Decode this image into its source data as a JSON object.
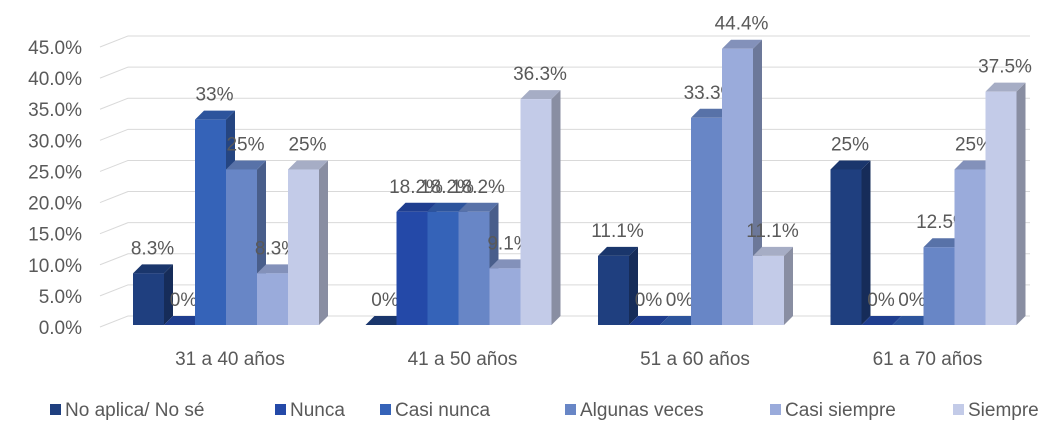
{
  "chart_data": {
    "type": "bar3d",
    "categories": [
      "31 a 40 años",
      "41 a 50 años",
      "51 a 60 años",
      "61 a 70 años"
    ],
    "series": [
      {
        "name": "No aplica/ No sé",
        "color": "#1f3f7f",
        "values": [
          8.3,
          0,
          11.1,
          25
        ],
        "value_labels": [
          "8.3%",
          "0%",
          "11.1%",
          "25%"
        ]
      },
      {
        "name": "Nunca",
        "color": "#2449a8",
        "values": [
          0,
          18.2,
          0,
          0
        ],
        "value_labels": [
          "0%",
          "18.2%",
          "0%",
          "0%"
        ]
      },
      {
        "name": "Casi nunca",
        "color": "#3563b8",
        "values": [
          33,
          18.2,
          0,
          0
        ],
        "value_labels": [
          "33%",
          "18.2%",
          "0%",
          "0%"
        ]
      },
      {
        "name": "Algunas veces",
        "color": "#6886c6",
        "values": [
          25,
          18.2,
          33.3,
          12.5
        ],
        "value_labels": [
          "25%",
          "18.2%",
          "33.3%",
          "12.5%"
        ]
      },
      {
        "name": "Casi siempre",
        "color": "#9aabdb",
        "values": [
          8.3,
          9.1,
          44.4,
          25
        ],
        "value_labels": [
          "8.3%",
          "9.1%",
          "44.4%",
          "25%"
        ]
      },
      {
        "name": "Siempre",
        "color": "#c3cbe8",
        "values": [
          25,
          36.3,
          11.1,
          37.5
        ],
        "value_labels": [
          "25%",
          "36.3%",
          "11.1%",
          "37.5%"
        ]
      }
    ],
    "ylim": [
      0,
      45
    ],
    "yticks": [
      {
        "value": 0,
        "label": "0.0%"
      },
      {
        "value": 5,
        "label": "5.0%"
      },
      {
        "value": 10,
        "label": "10.0%"
      },
      {
        "value": 15,
        "label": "15.0%"
      },
      {
        "value": 20,
        "label": "20.0%"
      },
      {
        "value": 25,
        "label": "25.0%"
      },
      {
        "value": 30,
        "label": "30.0%"
      },
      {
        "value": 35,
        "label": "35.0%"
      },
      {
        "value": 40,
        "label": "40.0%"
      },
      {
        "value": 45,
        "label": "45.0%"
      }
    ],
    "grid": true,
    "legend": "bottom"
  }
}
